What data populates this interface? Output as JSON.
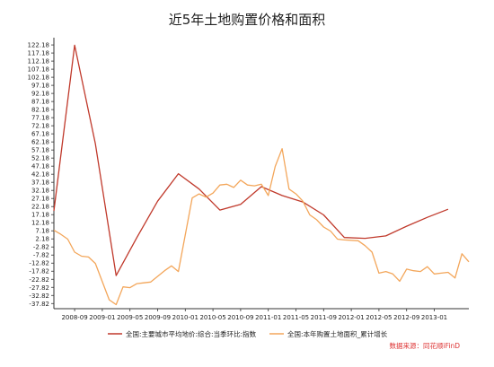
{
  "chart_data": {
    "type": "line",
    "title": "近5年土地购置价格和面积",
    "x": [
      "2008-06",
      "2008-07",
      "2008-08",
      "2008-09",
      "2008-10",
      "2008-11",
      "2008-12",
      "2009-01",
      "2009-02",
      "2009-03",
      "2009-04",
      "2009-05",
      "2009-06",
      "2009-07",
      "2009-08",
      "2009-09",
      "2009-10",
      "2009-11",
      "2009-12",
      "2010-01",
      "2010-02",
      "2010-03",
      "2010-04",
      "2010-05",
      "2010-06",
      "2010-07",
      "2010-08",
      "2010-09",
      "2010-10",
      "2010-11",
      "2010-12",
      "2011-01",
      "2011-02",
      "2011-03",
      "2011-04",
      "2011-05",
      "2011-06",
      "2011-07",
      "2011-08",
      "2011-09",
      "2011-10",
      "2011-11",
      "2011-12",
      "2012-01",
      "2012-02",
      "2012-03",
      "2012-04",
      "2012-05",
      "2012-06",
      "2012-07",
      "2012-08",
      "2012-09",
      "2012-10",
      "2012-11",
      "2012-12",
      "2013-01",
      "2013-02",
      "2013-03",
      "2013-04",
      "2013-05",
      "2013-06"
    ],
    "x_ticks": [
      "2008-09",
      "2009-01",
      "2009-05",
      "2009-09",
      "2010-01",
      "2010-05",
      "2010-09",
      "2011-01",
      "2011-05",
      "2011-09",
      "2012-01",
      "2012-05",
      "2012-09",
      "2013-01"
    ],
    "y_ticks": [
      122.18,
      117.18,
      112.18,
      107.18,
      102.18,
      97.18,
      92.18,
      87.18,
      82.18,
      77.18,
      72.18,
      67.18,
      62.18,
      57.18,
      52.18,
      47.18,
      42.18,
      37.18,
      32.18,
      27.18,
      22.18,
      17.18,
      12.18,
      7.18,
      2.18,
      -2.82,
      -7.82,
      -12.82,
      -17.82,
      -22.82,
      -27.82,
      -32.82,
      -37.82
    ],
    "ylim": [
      -41,
      125
    ],
    "series": [
      {
        "name": "全国:主要城市平均地价:综合:当季环比:指数",
        "color": "#c0392b",
        "points": [
          [
            "2008-06",
            19.5
          ],
          [
            "2008-09",
            122.0
          ],
          [
            "2008-12",
            61.0
          ],
          [
            "2009-03",
            -20.5
          ],
          [
            "2009-06",
            3.0
          ],
          [
            "2009-09",
            25.5
          ],
          [
            "2009-12",
            42.5
          ],
          [
            "2010-03",
            33.0
          ],
          [
            "2010-06",
            20.0
          ],
          [
            "2010-09",
            23.5
          ],
          [
            "2010-12",
            34.5
          ],
          [
            "2011-03",
            29.0
          ],
          [
            "2011-06",
            25.0
          ],
          [
            "2011-09",
            17.0
          ],
          [
            "2011-12",
            3.0
          ],
          [
            "2012-03",
            2.5
          ],
          [
            "2012-06",
            4.0
          ],
          [
            "2012-09",
            10.0
          ],
          [
            "2012-12",
            15.5
          ],
          [
            "2013-03",
            20.5
          ]
        ]
      },
      {
        "name": "全国:本年购置土地面积_累计增长",
        "color": "#f3a65a",
        "points": [
          [
            "2008-06",
            7.5
          ],
          [
            "2008-07",
            5.0
          ],
          [
            "2008-08",
            2.0
          ],
          [
            "2008-09",
            -6.0
          ],
          [
            "2008-10",
            -8.5
          ],
          [
            "2008-11",
            -9.0
          ],
          [
            "2008-12",
            -13.0
          ],
          [
            "2009-02",
            -35.5
          ],
          [
            "2009-03",
            -38.5
          ],
          [
            "2009-04",
            -27.5
          ],
          [
            "2009-05",
            -28.0
          ],
          [
            "2009-06",
            -25.5
          ],
          [
            "2009-07",
            -25.0
          ],
          [
            "2009-08",
            -24.5
          ],
          [
            "2009-09",
            -21.0
          ],
          [
            "2009-10",
            -17.5
          ],
          [
            "2009-11",
            -14.5
          ],
          [
            "2009-12",
            -18.0
          ],
          [
            "2010-02",
            27.5
          ],
          [
            "2010-03",
            30.0
          ],
          [
            "2010-04",
            28.0
          ],
          [
            "2010-05",
            30.5
          ],
          [
            "2010-06",
            35.5
          ],
          [
            "2010-07",
            36.0
          ],
          [
            "2010-08",
            34.0
          ],
          [
            "2010-09",
            38.5
          ],
          [
            "2010-10",
            35.5
          ],
          [
            "2010-11",
            35.0
          ],
          [
            "2010-12",
            36.0
          ],
          [
            "2011-01",
            29.0
          ],
          [
            "2011-02",
            47.0
          ],
          [
            "2011-03",
            58.0
          ],
          [
            "2011-04",
            33.0
          ],
          [
            "2011-05",
            30.0
          ],
          [
            "2011-06",
            25.5
          ],
          [
            "2011-07",
            17.0
          ],
          [
            "2011-08",
            14.0
          ],
          [
            "2011-09",
            9.5
          ],
          [
            "2011-10",
            7.0
          ],
          [
            "2011-11",
            2.0
          ],
          [
            "2011-12",
            1.5
          ],
          [
            "2012-02",
            1.0
          ],
          [
            "2012-03",
            -2.0
          ],
          [
            "2012-04",
            -6.0
          ],
          [
            "2012-05",
            -19.0
          ],
          [
            "2012-06",
            -18.0
          ],
          [
            "2012-07",
            -19.5
          ],
          [
            "2012-08",
            -24.0
          ],
          [
            "2012-09",
            -16.5
          ],
          [
            "2012-10",
            -17.5
          ],
          [
            "2012-11",
            -18.0
          ],
          [
            "2012-12",
            -15.0
          ],
          [
            "2013-01",
            -19.5
          ],
          [
            "2013-02",
            -19.0
          ],
          [
            "2013-03",
            -18.5
          ],
          [
            "2013-04",
            -22.0
          ],
          [
            "2013-05",
            -7.0
          ],
          [
            "2013-06",
            -12.0
          ]
        ]
      }
    ],
    "source": "数据来源：同花顺iFinD",
    "grid": false,
    "legend_position": "bottom-left"
  }
}
